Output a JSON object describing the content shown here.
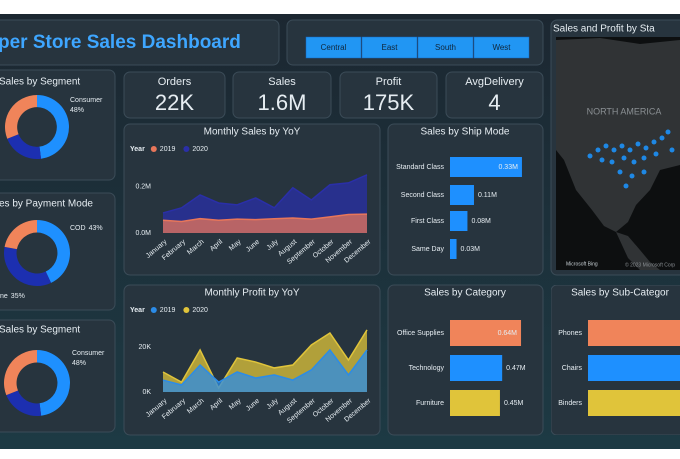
{
  "header": {
    "title": "per Store Sales Dashboard"
  },
  "filters": [
    "Central",
    "East",
    "South",
    "West"
  ],
  "kpis": [
    {
      "label": "Orders",
      "value": "22K"
    },
    {
      "label": "Sales",
      "value": "1.6M"
    },
    {
      "label": "Profit",
      "value": "175K"
    },
    {
      "label": "AvgDelivery",
      "value": "4"
    }
  ],
  "map": {
    "title": "Sales and Profit by Sta",
    "region_label": "NORTH AMERICA",
    "logo": "Microsoft Bing",
    "copyright": "© 2023 Microsoft Corp"
  },
  "chart_data": [
    {
      "type": "donut",
      "title": "Sales by Segment",
      "categories": [
        "Consumer",
        null,
        null
      ],
      "values": [
        48,
        21,
        31
      ],
      "value_labels": [
        "48%",
        null,
        null
      ],
      "colors": [
        "#1e90ff",
        "#1c2fb0",
        "#f0845a"
      ]
    },
    {
      "type": "donut",
      "title": "es by Payment Mode",
      "categories": [
        "COD",
        "ne",
        null
      ],
      "values": [
        43,
        35,
        22
      ],
      "value_labels": [
        "43%",
        "35%",
        null
      ],
      "colors": [
        "#1e90ff",
        "#1c2fb0",
        "#f0845a"
      ]
    },
    {
      "type": "donut",
      "title": "Sales by Segment",
      "categories": [
        "Consumer",
        null,
        null
      ],
      "values": [
        48,
        21,
        31
      ],
      "value_labels": [
        "48%",
        null,
        null
      ],
      "colors": [
        "#1e90ff",
        "#1c2fb0",
        "#f0845a"
      ]
    },
    {
      "type": "area",
      "title": "Monthly Sales by YoY",
      "legend_title": "Year",
      "categories": [
        "January",
        "February",
        "March",
        "April",
        "May",
        "June",
        "July",
        "August",
        "September",
        "October",
        "November",
        "December"
      ],
      "series": [
        {
          "name": "2019",
          "color": "#e8765a",
          "values": [
            55000,
            50000,
            62000,
            55000,
            60000,
            58000,
            62000,
            65000,
            60000,
            70000,
            80000,
            82000
          ]
        },
        {
          "name": "2020",
          "color": "#2a2fa8",
          "values": [
            87000,
            109000,
            165000,
            130000,
            122000,
            152000,
            109000,
            196000,
            143000,
            209000,
            217000,
            252000
          ]
        }
      ],
      "ylim": [
        0,
        260000
      ],
      "yticks": [
        {
          "value": 0,
          "label": "0.0M"
        },
        {
          "value": 200000,
          "label": "0.2M"
        }
      ]
    },
    {
      "type": "hbar",
      "title": "Sales by Ship Mode",
      "categories": [
        "Standard Class",
        "Second Class",
        "First Class",
        "Same Day"
      ],
      "values": [
        0.33,
        0.11,
        0.08,
        0.03
      ],
      "value_labels": [
        "0.33M",
        "0.11M",
        "0.08M",
        "0.03M"
      ],
      "color": "#1e90ff"
    },
    {
      "type": "area",
      "title": "Monthly Profit by YoY",
      "legend_title": "Year",
      "categories": [
        "January",
        "February",
        "March",
        "April",
        "May",
        "June",
        "July",
        "August",
        "September",
        "October",
        "November",
        "December"
      ],
      "series": [
        {
          "name": "2019",
          "color": "#2b8ce8",
          "values": [
            5300,
            3100,
            12000,
            4400,
            8900,
            6200,
            7600,
            5300,
            9800,
            18700,
            7600,
            18700
          ]
        },
        {
          "name": "2020",
          "color": "#e0c43a",
          "values": [
            8900,
            4400,
            18700,
            1800,
            15100,
            13300,
            10700,
            12000,
            20900,
            26200,
            14200,
            27600
          ]
        }
      ],
      "ylim": [
        0,
        28000
      ],
      "yticks": [
        {
          "value": 0,
          "label": "0K"
        },
        {
          "value": 20000,
          "label": "20K"
        }
      ]
    },
    {
      "type": "hbar",
      "title": "Sales by Category",
      "categories": [
        "Office Supplies",
        "Technology",
        "Furniture"
      ],
      "values": [
        0.64,
        0.47,
        0.45
      ],
      "value_labels": [
        "0.64M",
        "0.47M",
        "0.45M"
      ],
      "colors": [
        "#f0845a",
        "#1e90ff",
        "#e0c43a"
      ]
    },
    {
      "type": "hbar",
      "title": "Sales by Sub-Categor",
      "categories": [
        "Phones",
        "Chairs",
        "Binders"
      ],
      "values": [
        0.33,
        0.33,
        0.2
      ],
      "colors": [
        "#f0845a",
        "#1e90ff",
        "#e0c43a"
      ]
    }
  ]
}
